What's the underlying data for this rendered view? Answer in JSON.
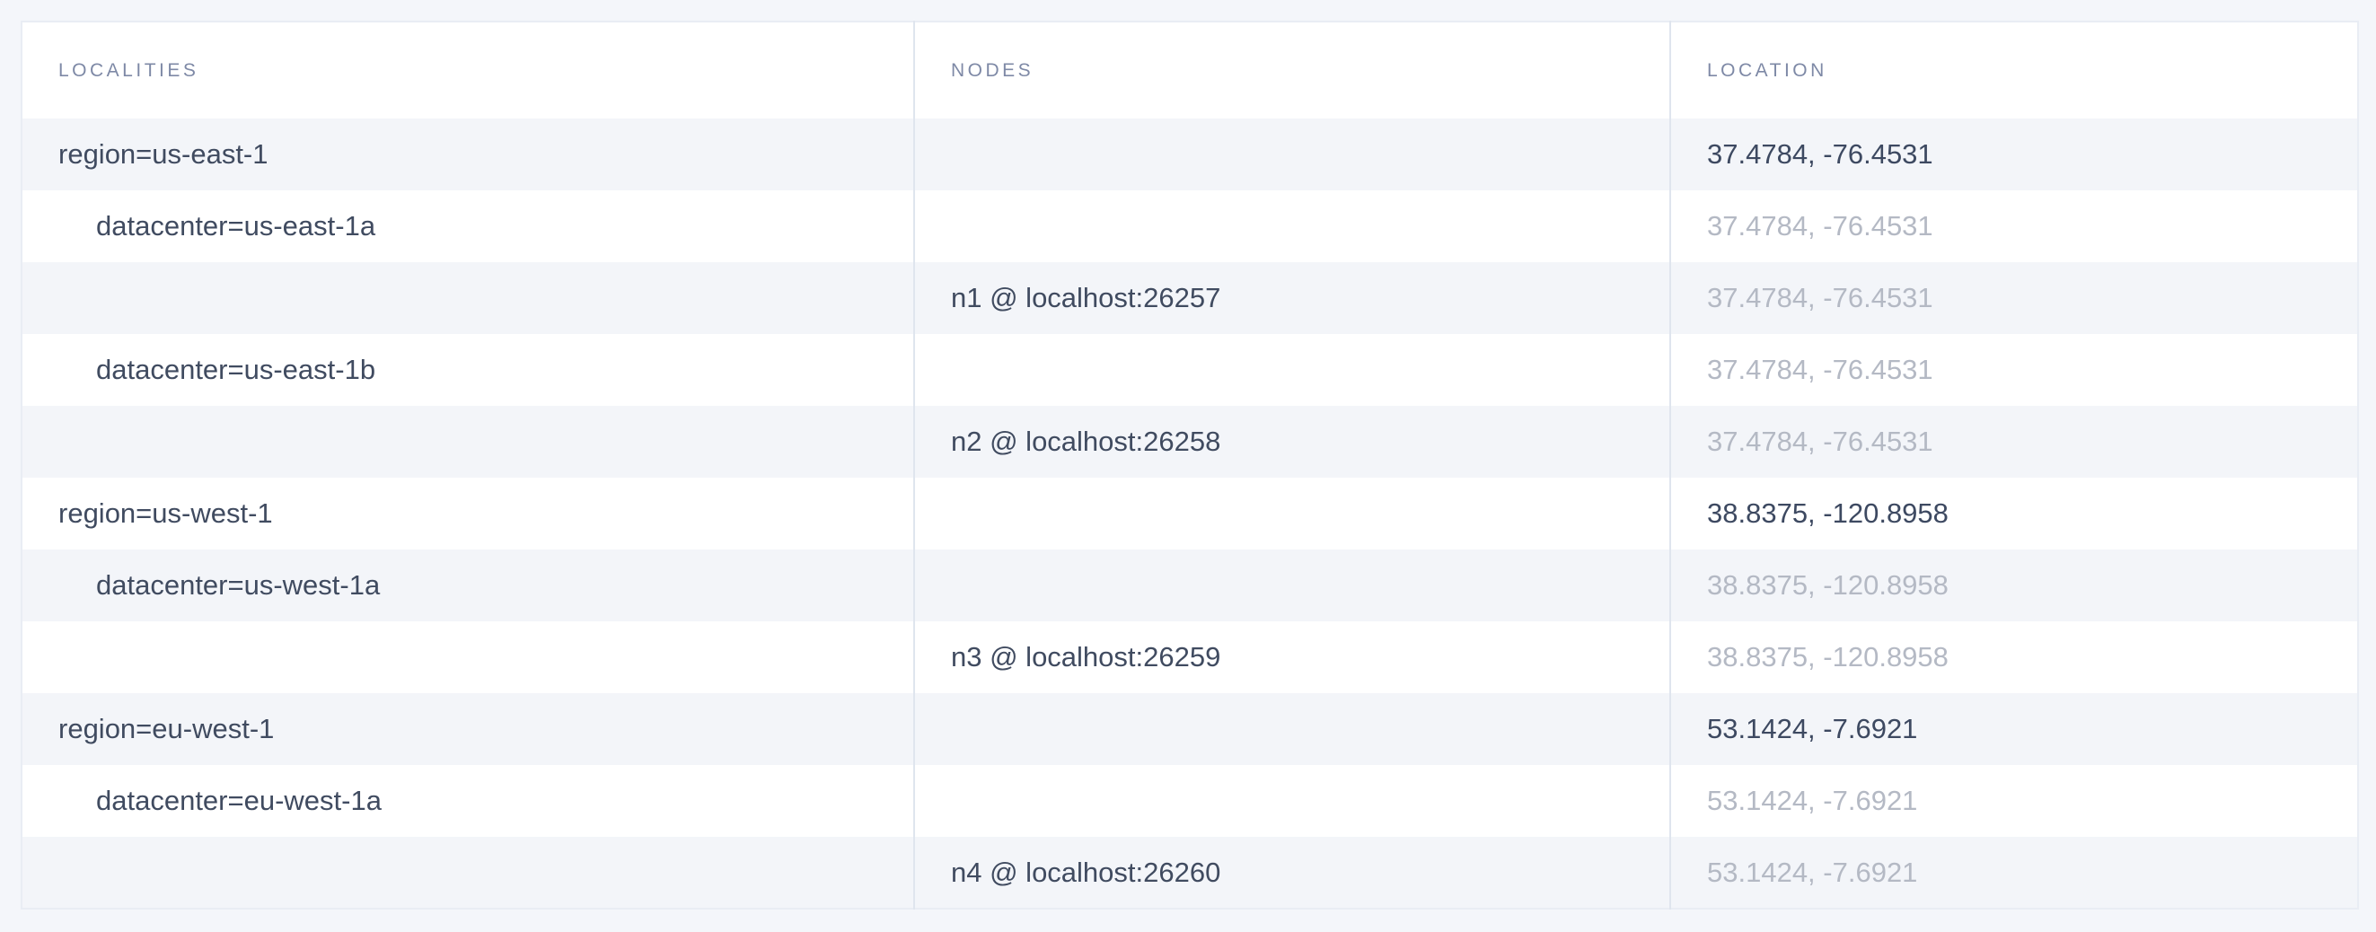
{
  "colors": {
    "page_background": "#f4f6fa",
    "row_stripe": "#f3f5f9",
    "header_text": "#7e89a6",
    "dark_text": "#3d4961",
    "muted_text": "#b4b9c4",
    "divider": "#dfe5ee"
  },
  "table": {
    "headers": [
      {
        "label": "LOCALITIES"
      },
      {
        "label": "NODES"
      },
      {
        "label": "LOCATION"
      }
    ],
    "rows": [
      {
        "level": "region",
        "locality": "region=us-east-1",
        "node": "",
        "location": "37.4784, -76.4531",
        "location_emphasis": "dark"
      },
      {
        "level": "datacenter",
        "locality": "datacenter=us-east-1a",
        "node": "",
        "location": "37.4784, -76.4531",
        "location_emphasis": "muted"
      },
      {
        "level": "node",
        "locality": "",
        "node": "n1 @ localhost:26257",
        "location": "37.4784, -76.4531",
        "location_emphasis": "muted"
      },
      {
        "level": "datacenter",
        "locality": "datacenter=us-east-1b",
        "node": "",
        "location": "37.4784, -76.4531",
        "location_emphasis": "muted"
      },
      {
        "level": "node",
        "locality": "",
        "node": "n2 @ localhost:26258",
        "location": "37.4784, -76.4531",
        "location_emphasis": "muted"
      },
      {
        "level": "region",
        "locality": "region=us-west-1",
        "node": "",
        "location": "38.8375, -120.8958",
        "location_emphasis": "dark"
      },
      {
        "level": "datacenter",
        "locality": "datacenter=us-west-1a",
        "node": "",
        "location": "38.8375, -120.8958",
        "location_emphasis": "muted"
      },
      {
        "level": "node",
        "locality": "",
        "node": "n3 @ localhost:26259",
        "location": "38.8375, -120.8958",
        "location_emphasis": "muted"
      },
      {
        "level": "region",
        "locality": "region=eu-west-1",
        "node": "",
        "location": "53.1424, -7.6921",
        "location_emphasis": "dark"
      },
      {
        "level": "datacenter",
        "locality": "datacenter=eu-west-1a",
        "node": "",
        "location": "53.1424, -7.6921",
        "location_emphasis": "muted"
      },
      {
        "level": "node",
        "locality": "",
        "node": "n4 @ localhost:26260",
        "location": "53.1424, -7.6921",
        "location_emphasis": "muted"
      }
    ]
  }
}
